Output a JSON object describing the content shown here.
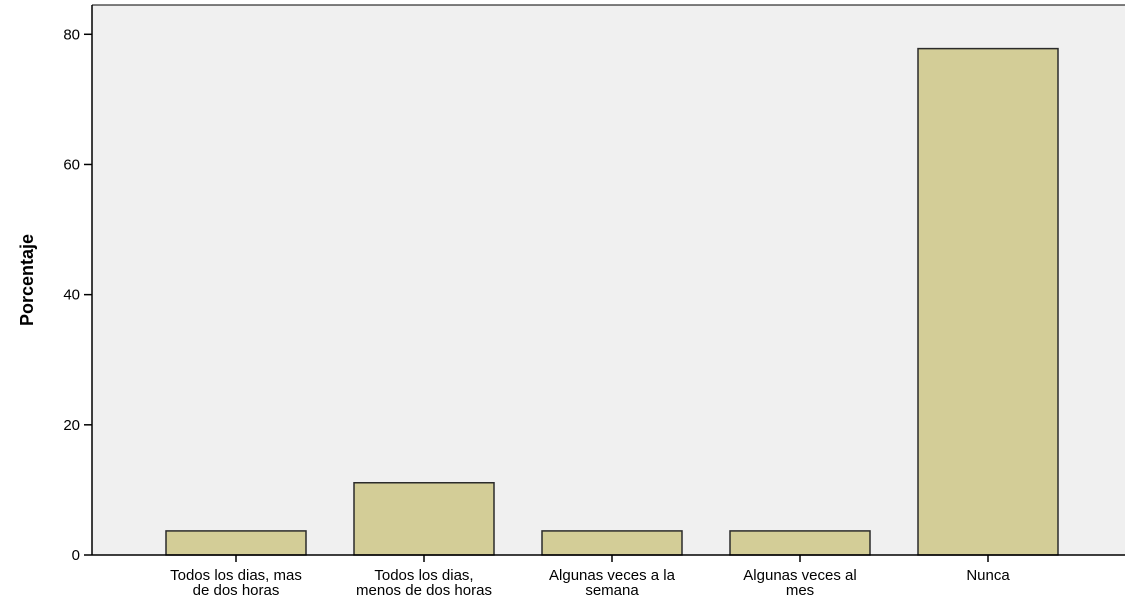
{
  "chart_data": {
    "type": "bar",
    "title": "",
    "xlabel": "",
    "ylabel": "Porcentaje",
    "categories": [
      [
        "Todos los dias, mas",
        "de dos horas"
      ],
      [
        "Todos los dias,",
        "menos de dos horas"
      ],
      [
        "Algunas veces a la",
        "semana"
      ],
      [
        "Algunas veces al",
        "mes"
      ],
      [
        "Nunca"
      ]
    ],
    "values": [
      3.7,
      11.1,
      3.7,
      3.7,
      77.8
    ],
    "ylim": [
      0,
      84.5
    ],
    "yticks": [
      0,
      20,
      40,
      60,
      80
    ],
    "grid": false,
    "legend": "none",
    "colors": {
      "bar_fill": "#d3cd97",
      "bar_stroke": "#2b2b2b",
      "plot_background": "#f0f0f0",
      "axis": "#000000"
    }
  }
}
